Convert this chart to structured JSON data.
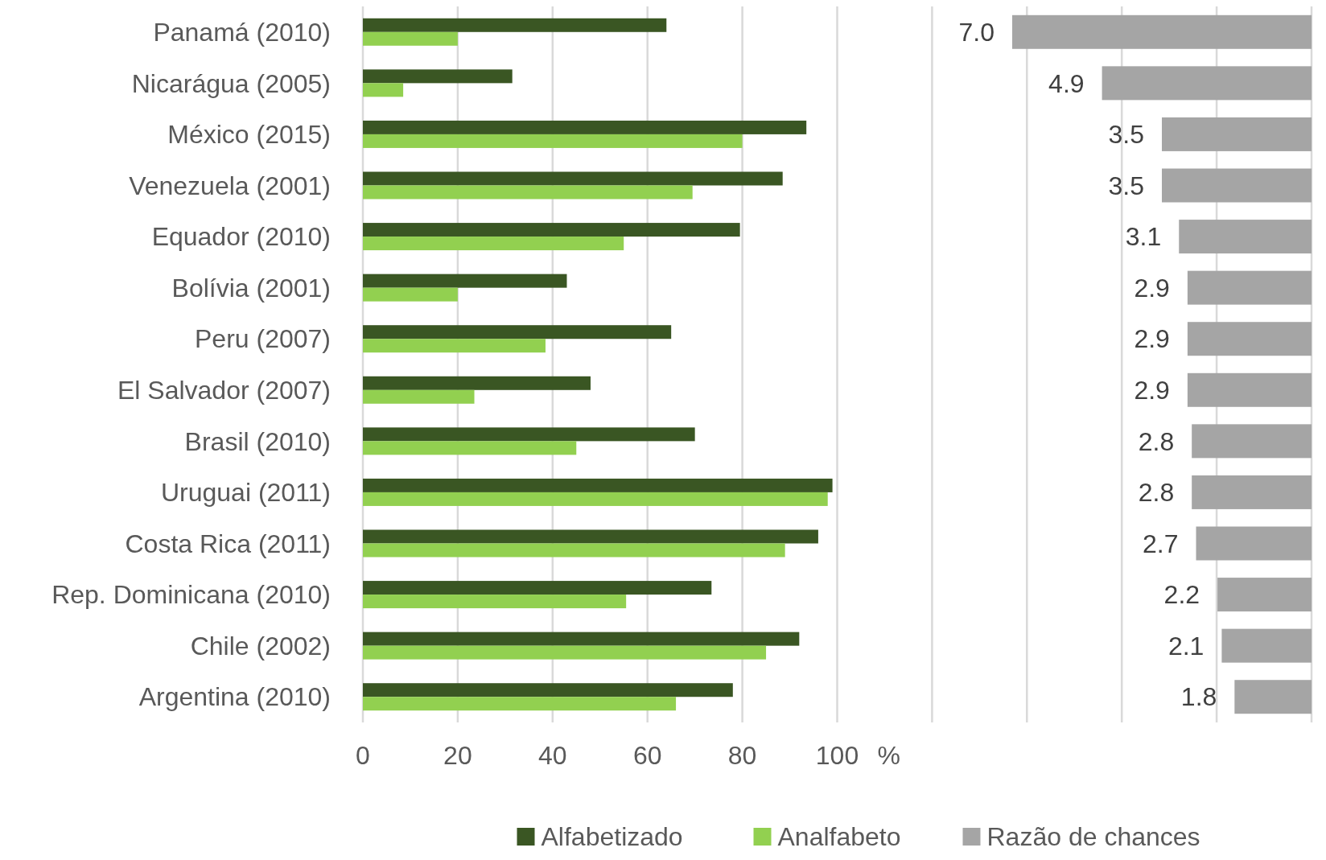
{
  "chart_data": [
    {
      "type": "bar",
      "orientation": "horizontal",
      "categories": [
        "Panamá (2010)",
        "Nicarágua (2005)",
        "México (2015)",
        "Venezuela (2001)",
        "Equador (2010)",
        "Bolívia (2001)",
        "Peru (2007)",
        "El Salvador (2007)",
        "Brasil (2010)",
        "Uruguai (2011)",
        "Costa Rica (2011)",
        "Rep. Dominicana (2010)",
        "Chile (2002)",
        "Argentina (2010)"
      ],
      "series": [
        {
          "name": "Alfabetizado",
          "color": "#3a5623",
          "values": [
            64,
            31.5,
            93.5,
            88.5,
            79.5,
            43,
            65,
            48,
            70,
            99,
            96,
            73.5,
            92,
            78
          ]
        },
        {
          "name": "Analfabeto",
          "color": "#92d050",
          "values": [
            20,
            8.5,
            80,
            69.5,
            55,
            20,
            38.5,
            23.5,
            45,
            98,
            89,
            55.5,
            85,
            66
          ]
        }
      ],
      "xlim": [
        0,
        200
      ],
      "xticks": [
        0,
        20,
        40,
        60,
        80,
        100,
        {
          "value": 120,
          "label": null
        },
        {
          "value": 140,
          "label": null
        },
        {
          "value": 160,
          "label": null
        },
        {
          "value": 180,
          "label": null
        },
        {
          "value": 200,
          "label": null
        }
      ],
      "xlabel": "%",
      "grid": "x",
      "legend": "bottom"
    },
    {
      "type": "bar",
      "orientation": "horizontal",
      "categories": [
        null,
        null,
        null,
        null,
        null,
        null,
        null,
        null,
        null,
        null,
        null,
        null,
        null,
        null
      ],
      "series": [
        {
          "name": "Razão de chances",
          "color": "#a5a5a5",
          "values": [
            7.0,
            4.9,
            3.5,
            3.5,
            3.1,
            2.9,
            2.9,
            2.9,
            2.8,
            2.8,
            2.7,
            2.2,
            2.1,
            1.8
          ],
          "value_labels": [
            "7.0",
            "4.9",
            "3.5",
            "3.5",
            "3.1",
            "2.9",
            "2.9",
            "2.9",
            "2.8",
            "2.8",
            "2.7",
            "2.2",
            "2.1",
            "1.8"
          ]
        }
      ],
      "legend": "bottom"
    }
  ]
}
